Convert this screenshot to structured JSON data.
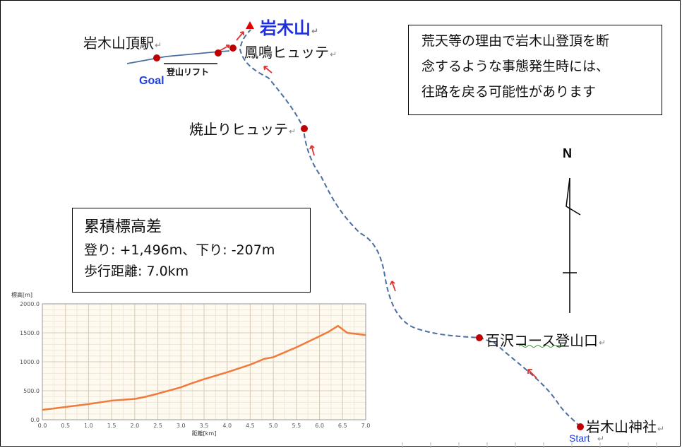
{
  "map": {
    "peak": {
      "name": "岩木山",
      "marker": "▲"
    },
    "places": [
      {
        "id": "summit-station",
        "name": "岩木山頂駅"
      },
      {
        "id": "hoomei-hut",
        "name": "鳳鳴ヒュッテ"
      },
      {
        "id": "yakedomari-hut",
        "name": "焼止りヒュッテ"
      },
      {
        "id": "hyakuzawa-trailhead",
        "name": "百沢コース登山口"
      },
      {
        "id": "iwakisan-shrine",
        "name": "岩木山神社"
      }
    ],
    "lift_label": "登山リフト",
    "goal_label": "Goal",
    "start_label": "Start",
    "north_label": "N",
    "edit_mark": "↵",
    "colors": {
      "route": "#4a6fa0",
      "pin": "#c00000",
      "peak_label": "#1f2fe0",
      "arrow": "#e03030",
      "chart_line": "#f07a3c"
    }
  },
  "notice": {
    "lines": [
      "荒天等の理由で岩木山登頂を断",
      "念するような事態発生時には、",
      "往路を戻る可能性があります"
    ]
  },
  "stats": {
    "title": "累積標高差",
    "ascent_line": "登り: +1,496m、下り: -207m",
    "distance_line": "歩行距離: 7.0km"
  },
  "chart_data": {
    "type": "area",
    "ylabel": "標高[m]",
    "xlabel": "距離[km]",
    "xlim": [
      0,
      7
    ],
    "ylim": [
      0,
      2000
    ],
    "x_ticks": [
      "0.0",
      "0.5",
      "1.0",
      "1.5",
      "2.0",
      "2.5",
      "3.0",
      "3.5",
      "4.0",
      "4.5",
      "5.0",
      "5.5",
      "6.0",
      "6.5",
      "7.0"
    ],
    "y_ticks": [
      "0.0",
      "500.0",
      "1000.0",
      "1500.0",
      "2000.0"
    ],
    "grid": true,
    "x": [
      0,
      0.3,
      0.6,
      1.0,
      1.5,
      1.85,
      2.0,
      2.2,
      2.5,
      3.0,
      3.2,
      3.5,
      4.0,
      4.5,
      4.8,
      5.0,
      5.5,
      6.0,
      6.2,
      6.4,
      6.5,
      6.6,
      6.8,
      7.0
    ],
    "y": [
      170,
      200,
      230,
      270,
      330,
      350,
      360,
      390,
      450,
      560,
      620,
      700,
      820,
      950,
      1050,
      1080,
      1250,
      1440,
      1520,
      1620,
      1560,
      1500,
      1480,
      1460
    ]
  }
}
